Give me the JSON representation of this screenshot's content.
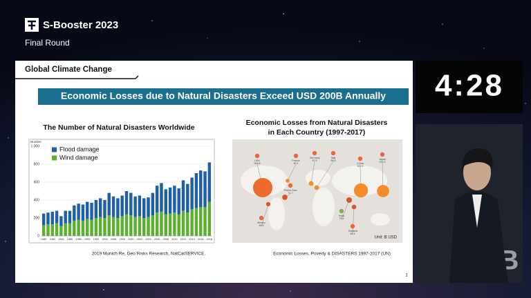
{
  "header": {
    "logo": "S-Booster 2023",
    "round": "Final Round"
  },
  "timer": "4:28",
  "slide": {
    "section": "Global Climate Change",
    "headline": "Economic Losses due to Natural Disasters Exceed USD 200B Annually",
    "left_source": "2019 Munich Re, Geo Risks Research, NatCatSERVICE.",
    "page": "1"
  },
  "map": {
    "title_line1": "Economic Losses from Natural Disasters",
    "title_line2": "in Each Country (1997-2017)",
    "unit": "Unit: B USD",
    "source": "Economic Losses, Poverty & DISASTERS 1997-2017 (UN)",
    "countries": [
      {
        "name": "USA",
        "value": 944.8
      },
      {
        "name": "France",
        "value": 40.1
      },
      {
        "name": "Germany",
        "value": 57.9
      },
      {
        "name": "Italy",
        "value": 56.6
      },
      {
        "name": "China",
        "value": 492.2
      },
      {
        "name": "Japan",
        "value": 376.3
      },
      {
        "name": "Puerto Rico",
        "value": 71.7
      },
      {
        "name": "Mexico",
        "value": 46.5
      },
      {
        "name": "India",
        "value": 79.5
      },
      {
        "name": "Thailand",
        "value": 52.4
      }
    ]
  },
  "chart_data": {
    "type": "stacked_bar",
    "title": "The Number of Natural Disasters Worldwide",
    "ylabel": "Number",
    "categories": [
      "1980",
      null,
      "1982",
      null,
      "1984",
      null,
      "1986",
      null,
      "1988",
      null,
      "1990",
      null,
      "1992",
      null,
      "1994",
      null,
      "1996",
      null,
      "1998",
      null,
      "2000",
      null,
      "2002",
      null,
      "2004",
      null,
      "2006",
      null,
      "2008",
      null,
      "2010",
      null,
      "2012",
      null,
      "2014",
      null,
      "2016",
      null,
      "2018"
    ],
    "series": [
      {
        "name": "Flood damage",
        "color": "#1f5fa8",
        "values": [
          130,
          130,
          140,
          140,
          110,
          140,
          140,
          170,
          180,
          180,
          190,
          190,
          200,
          210,
          200,
          250,
          230,
          220,
          230,
          260,
          250,
          230,
          230,
          220,
          220,
          250,
          300,
          320,
          280,
          290,
          300,
          290,
          340,
          320,
          350,
          390,
          410,
          400,
          440
        ]
      },
      {
        "name": "Wind damage",
        "color": "#5cb030",
        "values": [
          120,
          130,
          130,
          140,
          110,
          140,
          140,
          170,
          180,
          170,
          190,
          180,
          200,
          210,
          200,
          230,
          210,
          200,
          220,
          240,
          230,
          210,
          220,
          200,
          210,
          230,
          260,
          270,
          240,
          250,
          260,
          240,
          280,
          260,
          300,
          310,
          320,
          320,
          380
        ]
      }
    ],
    "stack_order": [
      1,
      0
    ],
    "ylim": [
      0,
      1000
    ],
    "yticks": [
      0,
      200,
      400,
      600,
      800,
      {
        "value": 1000,
        "label": "1 000"
      }
    ],
    "grid": true,
    "legend": "top-left"
  }
}
